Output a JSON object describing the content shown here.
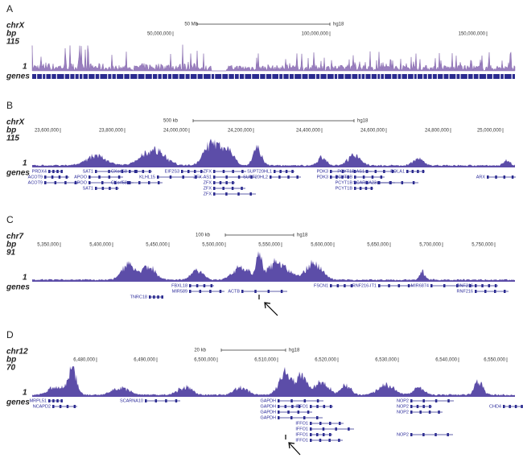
{
  "panels": [
    {
      "label": "A",
      "chrom": "chrX",
      "bp_label": "bp",
      "bp_max": 115,
      "bp_min": 1,
      "genes_label": "genes",
      "scale_label": "50 Mb",
      "assembly": "hg18",
      "ticks": [
        "50,000,000",
        "100,000,000",
        "150,000,000"
      ]
    },
    {
      "label": "B",
      "chrom": "chrX",
      "bp_label": "bp",
      "bp_max": 115,
      "bp_min": 1,
      "genes_label": "genes",
      "scale_label": "500 kb",
      "assembly": "hg18",
      "ticks": [
        "23,600,000",
        "23,800,000",
        "24,000,000",
        "24,200,000",
        "24,400,000",
        "24,600,000",
        "24,800,000",
        "25,000,000"
      ],
      "genes": [
        "PRDX4",
        "ACOT9",
        "ACOT9",
        "SAT1",
        "SAT1",
        "APOO",
        "APOO",
        "CXorf58",
        "CXorf58",
        "KLHL15",
        "EIF2S3",
        "ZFX",
        "ZFX-AS1",
        "ZFX",
        "ZFX",
        "ZFX",
        "SUPT20HL1",
        "SUPT20HL2",
        "PDK3",
        "PDK3",
        "PCYT1B",
        "PCYT1B",
        "PCYT1B",
        "PCYT1B-AS1",
        "SCARNA23",
        "POLA1",
        "ARX"
      ]
    },
    {
      "label": "C",
      "chrom": "chr7",
      "bp_label": "bp",
      "bp_max": 91,
      "bp_min": 1,
      "genes_label": "genes",
      "scale_label": "100 kb",
      "assembly": "hg18",
      "ticks": [
        "5,350,000",
        "5,400,000",
        "5,450,000",
        "5,500,000",
        "5,550,000",
        "5,600,000",
        "5,650,000",
        "5,700,000",
        "5,750,000"
      ],
      "genes": [
        "TNRC18",
        "FBXL18",
        "MIR589",
        "ACTB",
        "FSCN1",
        "RNF216-IT1",
        "MIR6874",
        "RNF216",
        "RNF216"
      ]
    },
    {
      "label": "D",
      "chrom": "chr12",
      "bp_label": "bp",
      "bp_max": 70,
      "bp_min": 1,
      "genes_label": "genes",
      "scale_label": "20 kb",
      "assembly": "hg18",
      "ticks": [
        "6,480,000",
        "6,490,000",
        "6,500,000",
        "6,510,000",
        "6,520,000",
        "6,530,000",
        "6,540,000",
        "6,550,000"
      ],
      "genes": [
        "MRPL51",
        "NCAPD2",
        "SCARNA10",
        "GAPDH",
        "GAPDH",
        "GAPDH",
        "GAPDH",
        "IFFO1",
        "IFFO1",
        "IFFO1",
        "IFFO1",
        "IFFO1",
        "NOP2",
        "NOP2",
        "NOP2",
        "NOP2",
        "CHD4"
      ]
    }
  ]
}
